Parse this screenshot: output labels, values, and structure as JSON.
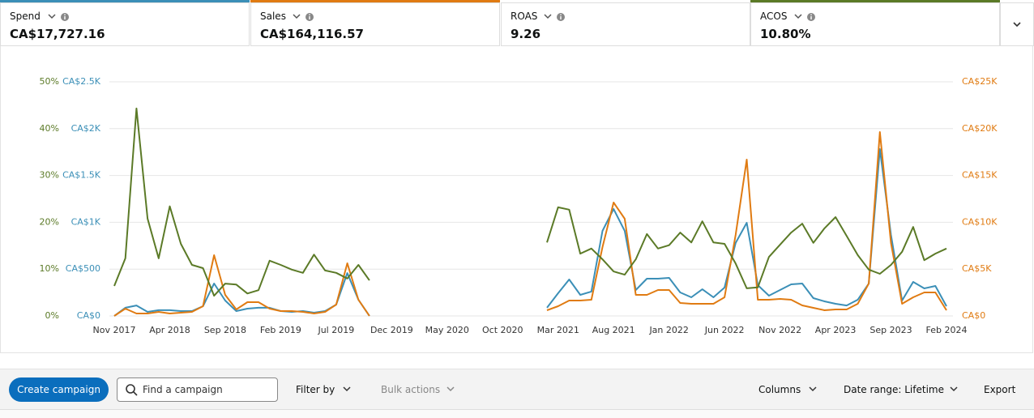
{
  "metrics": [
    {
      "label": "Spend",
      "value": "CA$17,727.16",
      "color": "#3b8fb7"
    },
    {
      "label": "Sales",
      "value": "CA$164,116.57",
      "color": "#e07b12"
    },
    {
      "label": "ROAS",
      "value": "9.26"
    },
    {
      "label": "ACOS",
      "value": "10.80%",
      "color": "#5b7a27"
    }
  ],
  "chart_data": {
    "type": "line",
    "categories": [
      "Nov 2017",
      null,
      null,
      null,
      null,
      "Apr 2018",
      null,
      null,
      null,
      null,
      "Sep 2018",
      null,
      null,
      null,
      null,
      "Feb 2019",
      null,
      null,
      null,
      null,
      "Jul 2019",
      null,
      null,
      null,
      null,
      "Dec 2019",
      null,
      null,
      null,
      null,
      "May 2020",
      null,
      null,
      null,
      null,
      "Oct 2020",
      null,
      null,
      null,
      null,
      "Mar 2021",
      null,
      null,
      null,
      null,
      "Aug 2021",
      null,
      null,
      null,
      null,
      "Jan 2022",
      null,
      null,
      null,
      null,
      "Jun 2022",
      null,
      null,
      null,
      null,
      "Nov 2022",
      null,
      null,
      null,
      null,
      "Apr 2023",
      null,
      null,
      null,
      null,
      "Sep 2023",
      null,
      null,
      null,
      null,
      "Feb 2024"
    ],
    "series": [
      {
        "color": "#3b8fb7",
        "axis": "y",
        "values": [
          0,
          87,
          112,
          43,
          61,
          61,
          52,
          52,
          104,
          346,
          164,
          52,
          78,
          87,
          87,
          52,
          43,
          52,
          35,
          52,
          121,
          458,
          173,
          0,
          null,
          null,
          null,
          null,
          null,
          null,
          null,
          null,
          null,
          null,
          null,
          null,
          null,
          null,
          null,
          87,
          242,
          389,
          225,
          260,
          908,
          1142,
          908,
          277,
          398,
          398,
          407,
          251,
          199,
          285,
          199,
          303,
          779,
          995,
          329,
          216,
          277,
          337,
          346,
          190,
          156,
          130,
          112,
          173,
          346,
          1782,
          865,
          164,
          363,
          294,
          320,
          104
        ]
      },
      {
        "color": "#e07b12",
        "axis": "y2",
        "values": [
          0,
          779,
          260,
          260,
          433,
          260,
          346,
          433,
          1038,
          6488,
          2249,
          692,
          1471,
          1471,
          779,
          519,
          519,
          433,
          260,
          433,
          1211,
          5623,
          1730,
          0,
          null,
          null,
          null,
          null,
          null,
          null,
          null,
          null,
          null,
          null,
          null,
          null,
          null,
          null,
          null,
          606,
          1038,
          1644,
          1644,
          1730,
          7353,
          12110,
          10380,
          2249,
          2249,
          2768,
          2768,
          1384,
          1298,
          1298,
          1298,
          1990,
          8650,
          16695,
          1730,
          1730,
          1817,
          1730,
          1125,
          865,
          606,
          692,
          692,
          1298,
          3460,
          19636,
          7785,
          1298,
          1990,
          2509,
          2509,
          606
        ]
      },
      {
        "color": "#5b7a27",
        "axis": "y3",
        "values": [
          6.4,
          12.3,
          44.3,
          20.8,
          12.3,
          23.4,
          15.4,
          10.9,
          10.2,
          4.3,
          6.9,
          6.7,
          4.8,
          5.5,
          11.8,
          10.9,
          9.9,
          9.2,
          13.1,
          9.7,
          9.2,
          8.0,
          10.9,
          7.6,
          null,
          null,
          null,
          null,
          null,
          null,
          null,
          null,
          null,
          null,
          null,
          null,
          null,
          null,
          null,
          15.7,
          23.2,
          22.7,
          13.3,
          14.4,
          12.1,
          9.5,
          8.8,
          12.1,
          17.5,
          14.4,
          15.1,
          17.8,
          15.7,
          20.2,
          15.7,
          15.4,
          11.2,
          5.9,
          6.1,
          12.6,
          15.2,
          17.8,
          19.7,
          15.6,
          18.7,
          21.1,
          17.1,
          13.0,
          9.9,
          9.0,
          10.9,
          13.7,
          19.0,
          11.9,
          13.3,
          14.4
        ]
      }
    ],
    "ylim": [
      0,
      2500
    ],
    "yticks": [
      {
        "value": 0,
        "label": "CA$0"
      },
      {
        "value": 500,
        "label": "CA$500"
      },
      {
        "value": 1000,
        "label": "CA$1K"
      },
      {
        "value": 1500,
        "label": "CA$1.5K"
      },
      {
        "value": 2000,
        "label": "CA$2K"
      },
      {
        "value": 2500,
        "label": "CA$2.5K"
      }
    ],
    "y2lim": [
      0,
      25000
    ],
    "y2ticks": [
      {
        "value": 0,
        "label": "CA$0"
      },
      {
        "value": 5000,
        "label": "CA$5K"
      },
      {
        "value": 10000,
        "label": "CA$10K"
      },
      {
        "value": 15000,
        "label": "CA$15K"
      },
      {
        "value": 20000,
        "label": "CA$20K"
      },
      {
        "value": 25000,
        "label": "CA$25K"
      }
    ],
    "y3lim": [
      0,
      50
    ],
    "y3ticks": [
      {
        "value": 0,
        "label": "0%"
      },
      {
        "value": 10,
        "label": "10%"
      },
      {
        "value": 20,
        "label": "20%"
      },
      {
        "value": 30,
        "label": "30%"
      },
      {
        "value": 40,
        "label": "40%"
      },
      {
        "value": 50,
        "label": "50%"
      }
    ],
    "grid": true
  },
  "toolbar": {
    "create": "Create campaign",
    "search": "Find a campaign",
    "filter": "Filter by",
    "bulk": "Bulk actions",
    "columns": "Columns",
    "date_range": "Date range: Lifetime",
    "export": "Export"
  }
}
